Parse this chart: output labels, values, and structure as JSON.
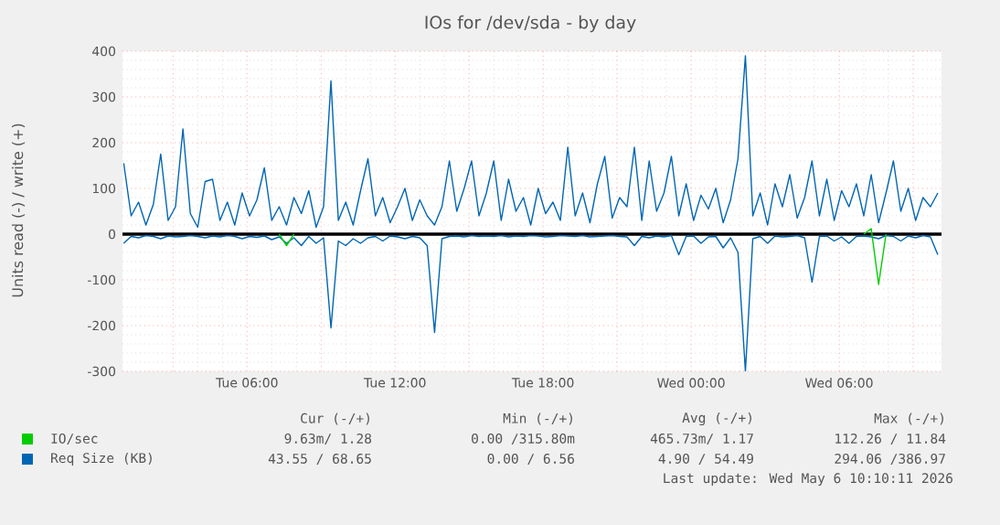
{
  "chart_data": {
    "type": "line",
    "title": "IOs for /dev/sda - by day",
    "ylabel": "Units read (-) / write (+)",
    "x": [
      "2026-05-05T01:00",
      "2026-05-05T01:18",
      "2026-05-05T01:36",
      "2026-05-05T01:54",
      "2026-05-05T02:12",
      "2026-05-05T02:30",
      "2026-05-05T02:48",
      "2026-05-05T03:06",
      "2026-05-05T03:24",
      "2026-05-05T03:42",
      "2026-05-05T04:00",
      "2026-05-05T04:18",
      "2026-05-05T04:36",
      "2026-05-05T04:54",
      "2026-05-05T05:12",
      "2026-05-05T05:30",
      "2026-05-05T05:48",
      "2026-05-05T06:06",
      "2026-05-05T06:24",
      "2026-05-05T06:42",
      "2026-05-05T07:00",
      "2026-05-05T07:18",
      "2026-05-05T07:36",
      "2026-05-05T07:54",
      "2026-05-05T08:12",
      "2026-05-05T08:30",
      "2026-05-05T08:48",
      "2026-05-05T09:06",
      "2026-05-05T09:24",
      "2026-05-05T09:42",
      "2026-05-05T10:00",
      "2026-05-05T10:18",
      "2026-05-05T10:36",
      "2026-05-05T10:54",
      "2026-05-05T11:12",
      "2026-05-05T11:30",
      "2026-05-05T11:48",
      "2026-05-05T12:06",
      "2026-05-05T12:24",
      "2026-05-05T12:42",
      "2026-05-05T13:00",
      "2026-05-05T13:18",
      "2026-05-05T13:36",
      "2026-05-05T13:54",
      "2026-05-05T14:12",
      "2026-05-05T14:30",
      "2026-05-05T14:48",
      "2026-05-05T15:06",
      "2026-05-05T15:24",
      "2026-05-05T15:42",
      "2026-05-05T16:00",
      "2026-05-05T16:18",
      "2026-05-05T16:36",
      "2026-05-05T16:54",
      "2026-05-05T17:12",
      "2026-05-05T17:30",
      "2026-05-05T17:48",
      "2026-05-05T18:06",
      "2026-05-05T18:24",
      "2026-05-05T18:42",
      "2026-05-05T19:00",
      "2026-05-05T19:18",
      "2026-05-05T19:36",
      "2026-05-05T19:54",
      "2026-05-05T20:12",
      "2026-05-05T20:30",
      "2026-05-05T20:48",
      "2026-05-05T21:06",
      "2026-05-05T21:24",
      "2026-05-05T21:42",
      "2026-05-05T22:00",
      "2026-05-05T22:18",
      "2026-05-05T22:36",
      "2026-05-05T22:54",
      "2026-05-05T23:12",
      "2026-05-05T23:30",
      "2026-05-05T23:48",
      "2026-05-06T00:06",
      "2026-05-06T00:24",
      "2026-05-06T00:42",
      "2026-05-06T01:00",
      "2026-05-06T01:18",
      "2026-05-06T01:36",
      "2026-05-06T01:54",
      "2026-05-06T02:12",
      "2026-05-06T02:30",
      "2026-05-06T02:48",
      "2026-05-06T03:06",
      "2026-05-06T03:24",
      "2026-05-06T03:42",
      "2026-05-06T04:00",
      "2026-05-06T04:18",
      "2026-05-06T04:36",
      "2026-05-06T04:54",
      "2026-05-06T05:12",
      "2026-05-06T05:30",
      "2026-05-06T05:48",
      "2026-05-06T06:06",
      "2026-05-06T06:24",
      "2026-05-06T06:42",
      "2026-05-06T07:00",
      "2026-05-06T07:18",
      "2026-05-06T07:36",
      "2026-05-06T07:54",
      "2026-05-06T08:12",
      "2026-05-06T08:30",
      "2026-05-06T08:48",
      "2026-05-06T09:06",
      "2026-05-06T09:24",
      "2026-05-06T09:42",
      "2026-05-06T10:00"
    ],
    "series": [
      {
        "name": "IO/sec",
        "color": "#00cc00",
        "values": [
          null,
          null,
          null,
          null,
          null,
          null,
          null,
          null,
          null,
          null,
          null,
          null,
          null,
          null,
          null,
          null,
          null,
          null,
          null,
          null,
          null,
          0,
          -25,
          0,
          null,
          null,
          null,
          null,
          null,
          null,
          null,
          null,
          null,
          null,
          null,
          null,
          null,
          null,
          null,
          null,
          null,
          null,
          null,
          null,
          null,
          null,
          null,
          null,
          null,
          null,
          null,
          null,
          null,
          null,
          null,
          null,
          null,
          null,
          null,
          null,
          null,
          null,
          null,
          null,
          null,
          null,
          null,
          null,
          null,
          null,
          null,
          null,
          null,
          null,
          null,
          null,
          null,
          null,
          null,
          null,
          null,
          null,
          null,
          null,
          null,
          null,
          null,
          null,
          null,
          null,
          null,
          null,
          null,
          null,
          null,
          null,
          null,
          null,
          null,
          null,
          0,
          12,
          -110,
          0,
          null,
          null,
          null,
          null,
          null,
          null,
          null
        ]
      },
      {
        "name": "Req Size (KB)",
        "color": "#0066b3",
        "values": [
          155,
          40,
          70,
          20,
          65,
          175,
          30,
          60,
          230,
          45,
          15,
          115,
          120,
          30,
          70,
          20,
          90,
          40,
          75,
          145,
          30,
          60,
          20,
          80,
          45,
          95,
          15,
          60,
          335,
          30,
          70,
          20,
          95,
          165,
          40,
          80,
          25,
          60,
          100,
          30,
          75,
          40,
          20,
          60,
          160,
          50,
          100,
          160,
          40,
          90,
          160,
          30,
          120,
          50,
          80,
          20,
          100,
          45,
          70,
          30,
          190,
          40,
          90,
          25,
          110,
          170,
          35,
          80,
          60,
          190,
          30,
          160,
          50,
          90,
          170,
          40,
          110,
          30,
          85,
          55,
          100,
          25,
          75,
          165,
          390,
          40,
          90,
          20,
          110,
          60,
          130,
          35,
          80,
          160,
          40,
          120,
          30,
          95,
          60,
          110,
          40,
          130,
          25,
          90,
          160,
          50,
          100,
          30,
          80,
          60,
          90
        ]
      },
      {
        "color": "#0066b3",
        "values": [
          -20,
          -5,
          -8,
          -3,
          -5,
          -10,
          -4,
          -6,
          -5,
          -3,
          -5,
          -8,
          -4,
          -6,
          -3,
          -5,
          -10,
          -5,
          -7,
          -4,
          -12,
          -6,
          -20,
          -8,
          -25,
          -5,
          -20,
          -8,
          -205,
          -15,
          -25,
          -10,
          -20,
          -8,
          -5,
          -15,
          -4,
          -6,
          -10,
          -5,
          -8,
          -25,
          -215,
          -10,
          -5,
          -4,
          -6,
          -3,
          -5,
          -4,
          -5,
          -3,
          -6,
          -4,
          -5,
          -3,
          -4,
          -6,
          -5,
          -3,
          -4,
          -5,
          -3,
          -6,
          -5,
          -4,
          -3,
          -5,
          -6,
          -25,
          -5,
          -8,
          -4,
          -6,
          -3,
          -45,
          -5,
          -4,
          -20,
          -6,
          -5,
          -30,
          -8,
          -40,
          -300,
          -10,
          -5,
          -20,
          -4,
          -6,
          -5,
          -3,
          -8,
          -105,
          -5,
          -4,
          -15,
          -6,
          -20,
          -5,
          -4,
          -6,
          -10,
          -3,
          -5,
          -15,
          -4,
          -8,
          -3,
          -6,
          -45
        ]
      }
    ],
    "xlim": [
      "2026-05-05T00:57",
      "2026-05-06T10:09"
    ],
    "xticks": [
      {
        "value": "2026-05-05T03:00",
        "label": null
      },
      {
        "value": "2026-05-05T06:00",
        "label": "Tue 06:00"
      },
      {
        "value": "2026-05-05T09:00",
        "label": null
      },
      {
        "value": "2026-05-05T12:00",
        "label": "Tue 12:00"
      },
      {
        "value": "2026-05-05T15:00",
        "label": null
      },
      {
        "value": "2026-05-05T18:00",
        "label": "Tue 18:00"
      },
      {
        "value": "2026-05-05T21:00",
        "label": null
      },
      {
        "value": "2026-05-06T00:00",
        "label": "Wed 00:00"
      },
      {
        "value": "2026-05-06T03:00",
        "label": null
      },
      {
        "value": "2026-05-06T06:00",
        "label": "Wed 06:00"
      },
      {
        "value": "2026-05-06T09:00",
        "label": null
      }
    ],
    "ylim": [
      -300,
      400
    ],
    "yticks": [
      -300,
      -200,
      -100,
      0,
      100,
      200,
      300,
      400
    ],
    "ref_lines": [
      {
        "axis": "y",
        "value": 0,
        "color": "#000000"
      }
    ],
    "grid": true,
    "legend": "bottom",
    "marker": "none",
    "line_style": "solid",
    "annotations": [
      "Cur (-/+)",
      "Min (-/+)",
      "Avg (-/+)",
      "Max (-/+)",
      "9.63m/ 1.28",
      "0.00 /315.80m",
      "465.73m/ 1.17",
      "112.26 / 11.84",
      "43.55 / 68.65",
      "0.00 / 6.56",
      "4.90 / 54.49",
      "294.06 /386.97",
      "Last update: Wed May 6 10:10:11 2026"
    ]
  }
}
